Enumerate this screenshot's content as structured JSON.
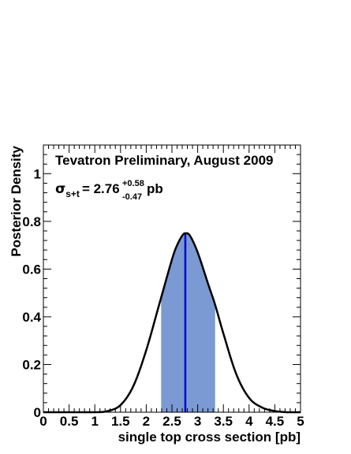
{
  "chart_data": {
    "type": "area",
    "title": "",
    "xlabel": "single top cross section [pb]",
    "ylabel": "Posterior Density",
    "xlim": [
      0,
      5
    ],
    "ylim": [
      0,
      1.12
    ],
    "x_ticks": [
      "0",
      "0.5",
      "1",
      "1.5",
      "2",
      "2.5",
      "3",
      "3.5",
      "4",
      "4.5",
      "5"
    ],
    "y_ticks": [
      "0",
      "0.2",
      "0.4",
      "0.6",
      "0.8",
      "1"
    ],
    "grid": false,
    "annotations": {
      "line1": "Tevatron Preliminary, August 2009",
      "sigma_symbol": "σ",
      "sigma_subscript": "s+t",
      "sigma_value": "= 2.76",
      "err_plus": "+0.58",
      "err_minus": "-0.47",
      "unit": "pb"
    },
    "series": [
      {
        "x": [
          0.0,
          0.5,
          1.0,
          1.25,
          1.5,
          1.75,
          2.0,
          2.25,
          2.5,
          2.6,
          2.7,
          2.76,
          2.85,
          3.0,
          3.2,
          3.34,
          3.5,
          3.75,
          4.0,
          4.25,
          4.5,
          4.75,
          5.0
        ],
        "y": [
          0.0,
          0.0,
          0.0,
          0.005,
          0.03,
          0.11,
          0.26,
          0.45,
          0.64,
          0.7,
          0.74,
          0.75,
          0.74,
          0.67,
          0.54,
          0.45,
          0.33,
          0.16,
          0.06,
          0.02,
          0.005,
          0.0,
          0.0
        ]
      }
    ],
    "credible_interval": [
      2.29,
      3.34
    ],
    "central_value": 2.76,
    "colors": {
      "fill": "#7b9ad3",
      "central_line": "#0000cc",
      "curve": "#000000"
    }
  }
}
